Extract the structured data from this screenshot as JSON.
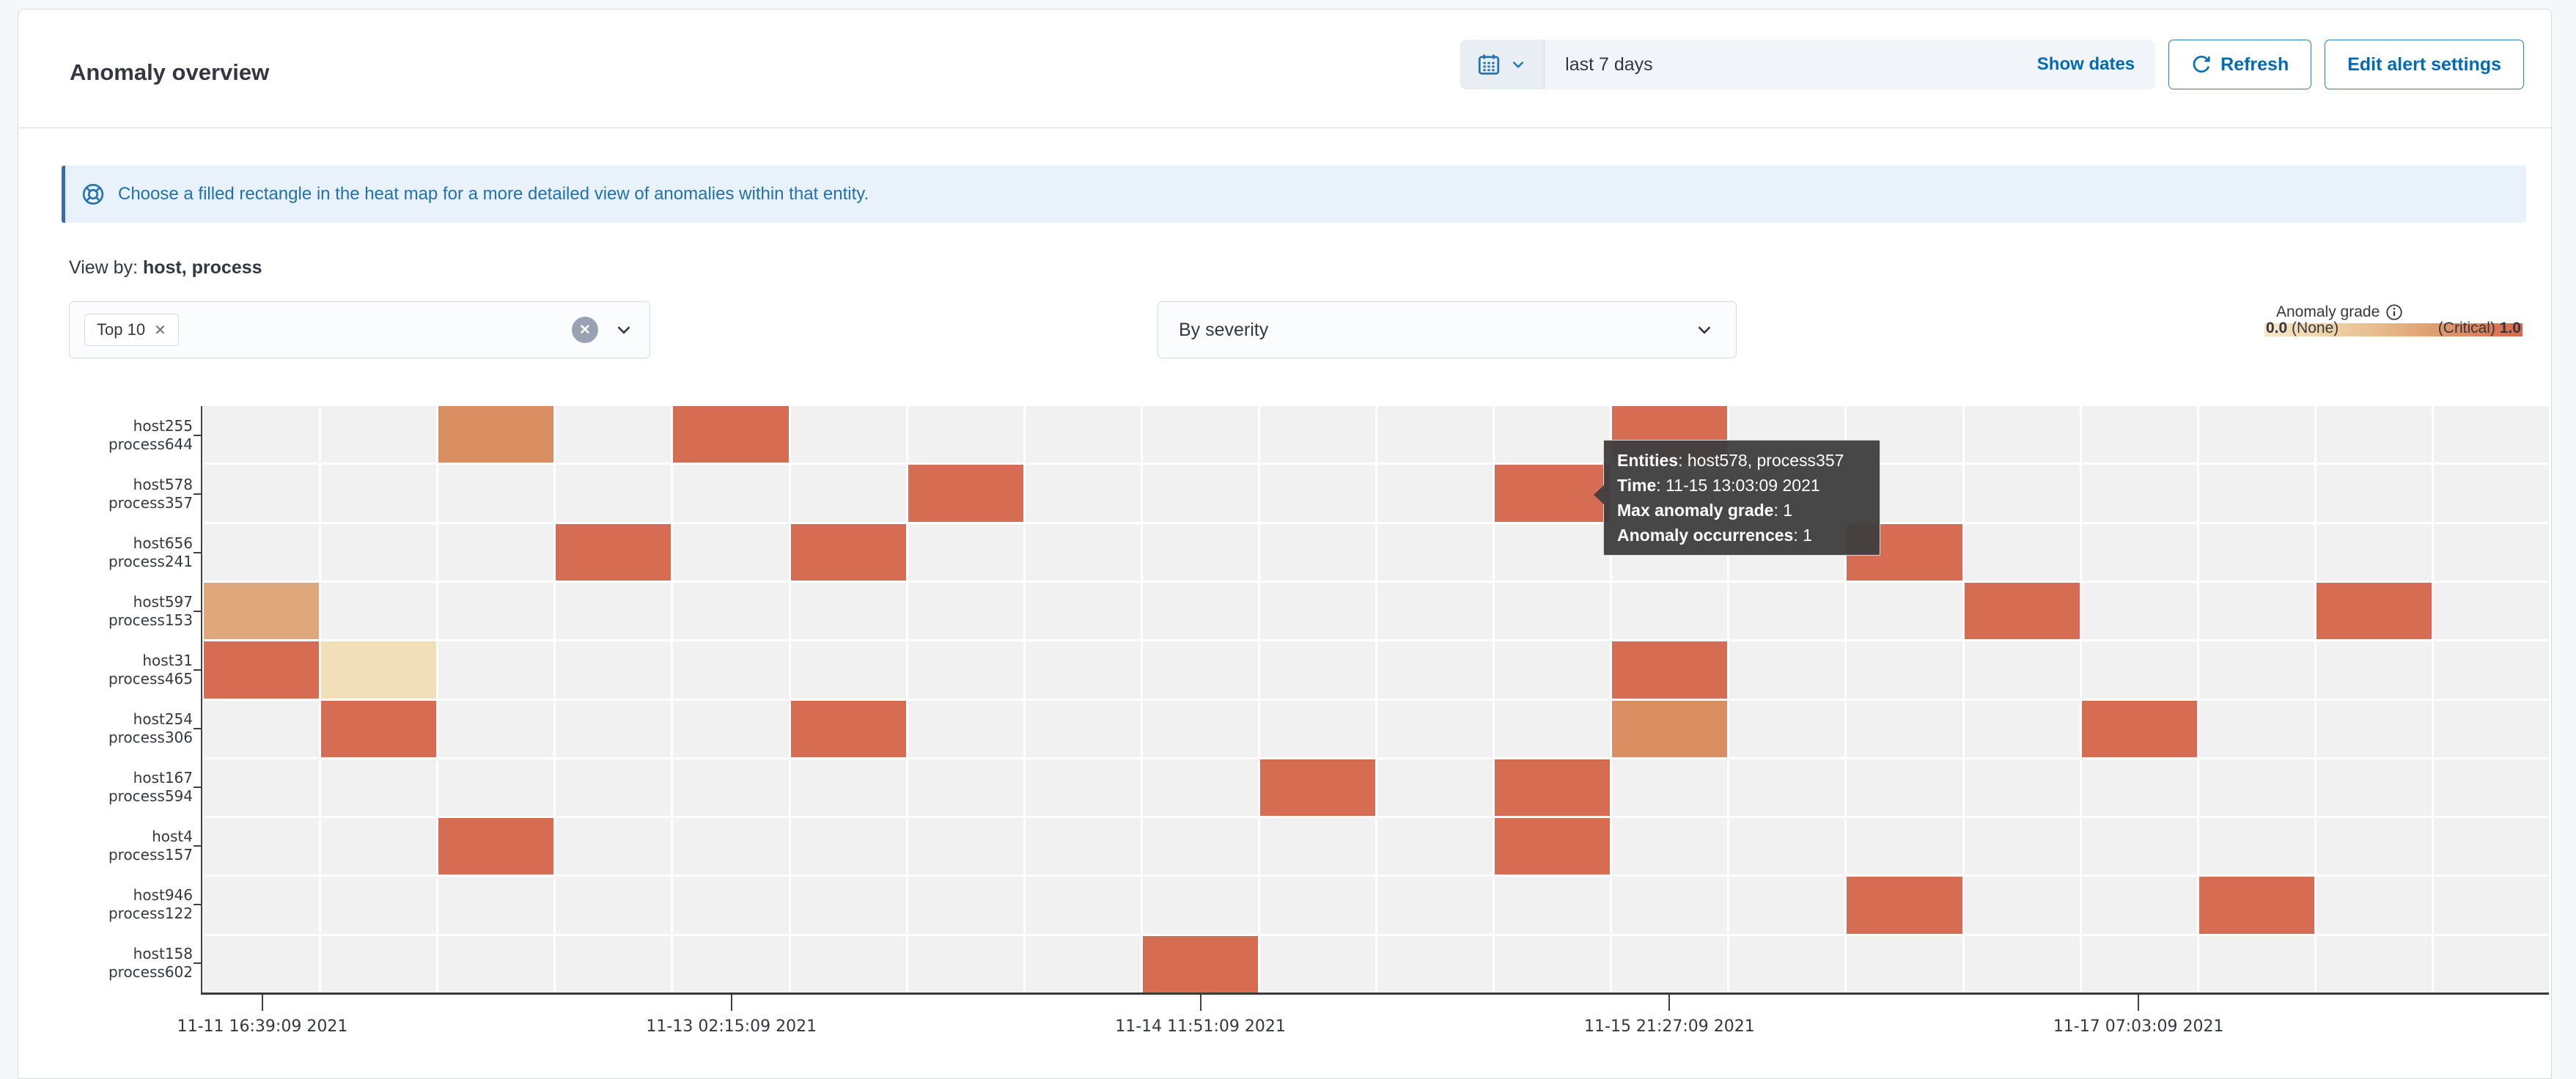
{
  "header": {
    "title": "Anomaly overview",
    "date_picker": {
      "value": "last 7 days",
      "show_dates_label": "Show dates"
    },
    "refresh_label": "Refresh",
    "edit_alert_settings_label": "Edit alert settings"
  },
  "callout": {
    "text": "Choose a filled rectangle in the heat map for a more detailed view of anomalies within that entity."
  },
  "view_by": {
    "label": "View by:",
    "value": "host, process"
  },
  "filters": {
    "selected_option": "Top 10",
    "sort_value": "By severity"
  },
  "legend": {
    "title": "Anomaly grade",
    "min_value": "0.0",
    "min_label": "(None)",
    "max_label": "(Critical)",
    "max_value": "1.0"
  },
  "tooltip": {
    "entities_label": "Entities",
    "entities": "host578, process357",
    "time_label": "Time",
    "time": "11-15 13:03:09 2021",
    "grade_label": "Max anomaly grade",
    "grade": "1",
    "occurrences_label": "Anomaly occurrences",
    "occurrences": "1"
  },
  "chart_data": {
    "type": "heatmap",
    "title": "Anomaly occurrences heat map by host, process over last 7 days",
    "n_columns": 20,
    "y_labels": [
      [
        "host255",
        "process644"
      ],
      [
        "host578",
        "process357"
      ],
      [
        "host656",
        "process241"
      ],
      [
        "host597",
        "process153"
      ],
      [
        "host31",
        "process465"
      ],
      [
        "host254",
        "process306"
      ],
      [
        "host167",
        "process594"
      ],
      [
        "host4",
        "process157"
      ],
      [
        "host946",
        "process122"
      ],
      [
        "host158",
        "process602"
      ]
    ],
    "x_ticks": [
      "11-11 16:39:09 2021",
      "11-13 02:15:09 2021",
      "11-14 11:51:09 2021",
      "11-15 21:27:09 2021",
      "11-17 07:03:09 2021"
    ],
    "x_tick_columns": [
      0,
      4,
      8,
      12,
      16
    ],
    "value_range": [
      0.0,
      1.0
    ],
    "palette": {
      "empty": "#f1f1f2",
      "low": "#f1dfba",
      "medium": "#e0a87a",
      "high": "#d98f62",
      "critical": "#d66c52"
    },
    "cells": [
      {
        "row": 0,
        "col": 2,
        "level": "high",
        "grade": 0.6
      },
      {
        "row": 0,
        "col": 4,
        "level": "critical",
        "grade": 1
      },
      {
        "row": 0,
        "col": 12,
        "level": "critical",
        "grade": 1
      },
      {
        "row": 1,
        "col": 6,
        "level": "critical",
        "grade": 1
      },
      {
        "row": 1,
        "col": 11,
        "level": "critical",
        "grade": 1,
        "hovered": true
      },
      {
        "row": 2,
        "col": 3,
        "level": "critical",
        "grade": 1
      },
      {
        "row": 2,
        "col": 5,
        "level": "critical",
        "grade": 1
      },
      {
        "row": 2,
        "col": 14,
        "level": "critical",
        "grade": 1
      },
      {
        "row": 3,
        "col": 0,
        "level": "medium",
        "grade": 0.45
      },
      {
        "row": 3,
        "col": 15,
        "level": "critical",
        "grade": 1
      },
      {
        "row": 3,
        "col": 18,
        "level": "critical",
        "grade": 1
      },
      {
        "row": 4,
        "col": 0,
        "level": "critical",
        "grade": 1
      },
      {
        "row": 4,
        "col": 1,
        "level": "low",
        "grade": 0.2
      },
      {
        "row": 4,
        "col": 12,
        "level": "critical",
        "grade": 1
      },
      {
        "row": 5,
        "col": 1,
        "level": "critical",
        "grade": 1
      },
      {
        "row": 5,
        "col": 5,
        "level": "critical",
        "grade": 1
      },
      {
        "row": 5,
        "col": 12,
        "level": "high",
        "grade": 0.6
      },
      {
        "row": 5,
        "col": 16,
        "level": "critical",
        "grade": 1
      },
      {
        "row": 6,
        "col": 9,
        "level": "critical",
        "grade": 1
      },
      {
        "row": 6,
        "col": 11,
        "level": "critical",
        "grade": 1
      },
      {
        "row": 7,
        "col": 2,
        "level": "critical",
        "grade": 1
      },
      {
        "row": 7,
        "col": 11,
        "level": "critical",
        "grade": 1
      },
      {
        "row": 8,
        "col": 14,
        "level": "critical",
        "grade": 1
      },
      {
        "row": 8,
        "col": 17,
        "level": "critical",
        "grade": 1
      },
      {
        "row": 9,
        "col": 8,
        "level": "critical",
        "grade": 1
      }
    ]
  }
}
